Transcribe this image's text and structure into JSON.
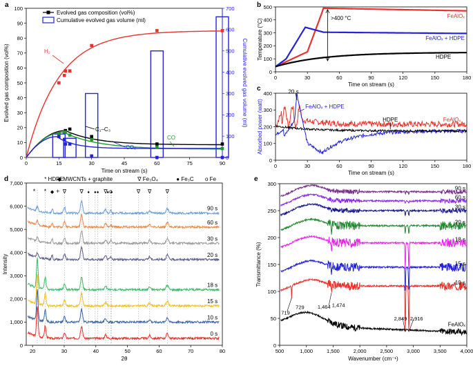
{
  "chart_data": [
    {
      "panel": "a",
      "type": "line",
      "xlabel": "Time on stream (s)",
      "ylabel": "Evolved gas composition (vol%)",
      "ylabel_right": "Cumulative evolved gas volume (ml)",
      "xlim": [
        0,
        90
      ],
      "ylim": [
        0,
        100
      ],
      "ylim_right": [
        0,
        700
      ],
      "xticks": [
        0,
        15,
        30,
        45,
        60,
        75,
        90
      ],
      "yticks": [
        0,
        10,
        20,
        30,
        40,
        50,
        60,
        70,
        80,
        90,
        100
      ],
      "yticks_right": [
        0,
        100,
        200,
        300,
        400,
        500,
        600,
        700
      ],
      "legend": [
        "Evolved gas composition (vol%)",
        "Cumulative evolved gas volume (ml)"
      ],
      "series": [
        {
          "name": "H2",
          "label": "H₂",
          "color": "#e8312b",
          "x": [
            15,
            17.5,
            18,
            20,
            30,
            60,
            90
          ],
          "y": [
            50,
            55,
            58,
            58,
            75,
            85,
            85
          ]
        },
        {
          "name": "C1–C3",
          "label": "C₁–C₃",
          "color": "#000000",
          "x": [
            15,
            17.5,
            18,
            20,
            30,
            60,
            90
          ],
          "y": [
            16,
            17,
            18,
            19,
            14,
            9,
            9
          ]
        },
        {
          "name": "CO",
          "label": "CO",
          "color": "#1f9a2e",
          "x": [
            15,
            17.5,
            18,
            20,
            30,
            60,
            90
          ],
          "y": [
            16,
            17,
            17,
            15,
            12,
            7,
            6
          ]
        },
        {
          "name": "CO2",
          "label": "CO₂",
          "color": "#2323d8",
          "x": [
            15,
            17.5,
            18,
            20,
            30,
            60,
            90
          ],
          "y": [
            14,
            12,
            9,
            9,
            1,
            0,
            0
          ]
        }
      ],
      "bars": {
        "name": "Cumulative evolved gas volume (ml)",
        "color": "#2323d8",
        "x": [
          15,
          20,
          30,
          60,
          90
        ],
        "values": [
          110,
          90,
          300,
          500,
          660
        ]
      }
    },
    {
      "panel": "b",
      "type": "line",
      "xlabel": "Time on stream (s)",
      "ylabel": "Temperature (°C)",
      "xlim": [
        0,
        180
      ],
      "ylim": [
        0,
        500
      ],
      "xticks": [
        0,
        30,
        60,
        90,
        120,
        150,
        180
      ],
      "yticks": [
        0,
        100,
        200,
        300,
        400,
        500
      ],
      "annotation": ">400 °C",
      "series": [
        {
          "name": "FeAlOx",
          "label": "FeAlOₓ",
          "color": "#e8312b"
        },
        {
          "name": "FeAlOx + HDPE",
          "label": "FeAlOₓ + HDPE",
          "color": "#2323d8"
        },
        {
          "name": "HDPE",
          "label": "HDPE",
          "color": "#000000"
        }
      ]
    },
    {
      "panel": "c",
      "type": "line",
      "xlabel": "Time on stream (s)",
      "ylabel": "Absorbed power (watt)",
      "xlim": [
        0,
        180
      ],
      "ylim": [
        0,
        400
      ],
      "xticks": [
        0,
        30,
        60,
        90,
        120,
        150,
        180
      ],
      "yticks": [
        0,
        100,
        200,
        300,
        400
      ],
      "annotation": "20 s",
      "series": [
        {
          "name": "FeAlOx + HDPE",
          "label": "FeAlOₓ + HDPE",
          "color": "#2323d8"
        },
        {
          "name": "HDPE",
          "label": "HDPE",
          "color": "#000000"
        },
        {
          "name": "FeAlOx",
          "label": "FeAlOₓ",
          "color": "#e8312b"
        }
      ]
    },
    {
      "panel": "d",
      "type": "line",
      "xlabel": "2θ",
      "ylabel": "Intensity",
      "xlim": [
        18,
        80
      ],
      "ylim": [
        0,
        7000
      ],
      "xticks": [
        20,
        30,
        40,
        50,
        60,
        70,
        80
      ],
      "yticks": [
        0,
        1000,
        2000,
        3000,
        4000,
        5000,
        6000,
        7000
      ],
      "ytick_labels": [
        "0",
        "1,000",
        "2,000",
        "3,000",
        "4,000",
        "5,000",
        "6,000",
        "7,000"
      ],
      "legend": [
        "* HDPE",
        "◆ MWCNTs + graphite",
        "∇ Fe₃O₄",
        "● Fe₃C",
        "ο Fe"
      ],
      "series": [
        {
          "name": "0 s",
          "color": "#e8312b",
          "offset": 0
        },
        {
          "name": "10 s",
          "color": "#3a63a8",
          "offset": 700
        },
        {
          "name": "15 s",
          "color": "#f2c01e",
          "offset": 1400
        },
        {
          "name": "18 s",
          "color": "#3dbb68",
          "offset": 2100
        },
        {
          "name": "20 s",
          "color": "#5c5c90",
          "offset": 3400
        },
        {
          "name": "30 s",
          "color": "#9a9a9a",
          "offset": 4100
        },
        {
          "name": "60 s",
          "color": "#ea8a4a",
          "offset": 4800
        },
        {
          "name": "90 s",
          "color": "#6b9ed8",
          "offset": 5400
        }
      ],
      "peaks_2theta": [
        21.5,
        24,
        30.1,
        35.5,
        43.1,
        57,
        62.6
      ],
      "marker_rows": {
        "star": [
          20.5,
          24
        ],
        "diamond": [
          26.2
        ],
        "plus": [
          28
        ],
        "nabla": [
          30.1,
          35.5,
          43.1,
          53.5,
          57,
          62.6
        ],
        "dot": [
          37.7,
          39.8,
          40.6,
          43.8,
          45
        ],
        "circle": [
          44.7
        ]
      }
    },
    {
      "panel": "e",
      "type": "line",
      "xlabel": "Wavenumber (cm⁻¹)",
      "ylabel": "Transmittance (%)",
      "xlim": [
        500,
        4000
      ],
      "ylim": [
        0,
        300
      ],
      "xticks": [
        500,
        1000,
        1500,
        2000,
        2500,
        3000,
        3500,
        4000
      ],
      "xtick_labels": [
        "500",
        "1,000",
        "1,500",
        "2,000",
        "2,500",
        "3,000",
        "3,500",
        "4,000"
      ],
      "yticks": [
        0,
        50,
        100,
        150,
        200,
        250,
        300
      ],
      "annotations": [
        "719",
        "729",
        "1,464",
        "1,474",
        "2,849",
        "2,916"
      ],
      "series": [
        {
          "name": "FeAlOx",
          "label": "FeAlOₓ",
          "color": "#000000",
          "baseline": 40
        },
        {
          "name": "10 s",
          "color": "#e8312b",
          "baseline": 110
        },
        {
          "name": "15 s",
          "color": "#2323d8",
          "baseline": 145
        },
        {
          "name": "18 s",
          "color": "#ee22ee",
          "baseline": 190
        },
        {
          "name": "20 s",
          "color": "#1f8a2e",
          "baseline": 222
        },
        {
          "name": "30 s",
          "color": "#1a1a8c",
          "baseline": 250
        },
        {
          "name": "60 s",
          "color": "#8a2be2",
          "baseline": 268
        },
        {
          "name": "90 s",
          "color": "#7b2d8e",
          "baseline": 285
        }
      ]
    }
  ]
}
